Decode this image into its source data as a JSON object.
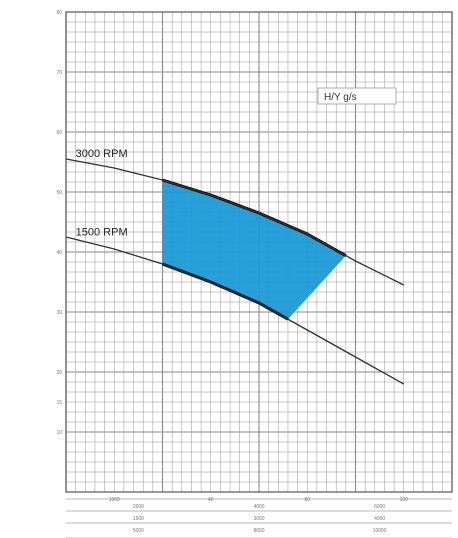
{
  "chart_data": {
    "type": "area",
    "series": [
      {
        "name": "3000 RPM",
        "x": [
          0,
          20,
          40,
          60,
          80,
          100,
          120,
          140
        ],
        "y": [
          55.5,
          54,
          52,
          49.5,
          46.5,
          43,
          38.5,
          34.5
        ]
      },
      {
        "name": "1500 RPM",
        "x": [
          0,
          20,
          40,
          60,
          80,
          100,
          120,
          140
        ],
        "y": [
          42.5,
          40.5,
          38,
          35,
          31.5,
          27,
          22.5,
          18
        ]
      }
    ],
    "operating_region": {
      "x_min": 40,
      "x_max": 116,
      "x_lower_end": 92,
      "fill": "#1b9bd8"
    },
    "y_ticks": [
      "10",
      "15",
      "20",
      "30",
      "40",
      "50",
      "60",
      "70",
      "80"
    ],
    "x_ticks": [
      "1000",
      "40",
      "80",
      "100"
    ],
    "bottom_scale_rows": [
      [
        "2000",
        "4000",
        "6000"
      ],
      [
        "1500",
        "3000",
        "4000"
      ],
      [
        "5000",
        "8000",
        "10000"
      ]
    ],
    "badge": "H/Y g/s",
    "xlim": [
      0,
      160
    ],
    "ylim": [
      0,
      80
    ],
    "grid": true,
    "colors": {
      "grid": "#8a8a8a",
      "curve": "#333333",
      "fill": "#1b9bd8"
    }
  }
}
